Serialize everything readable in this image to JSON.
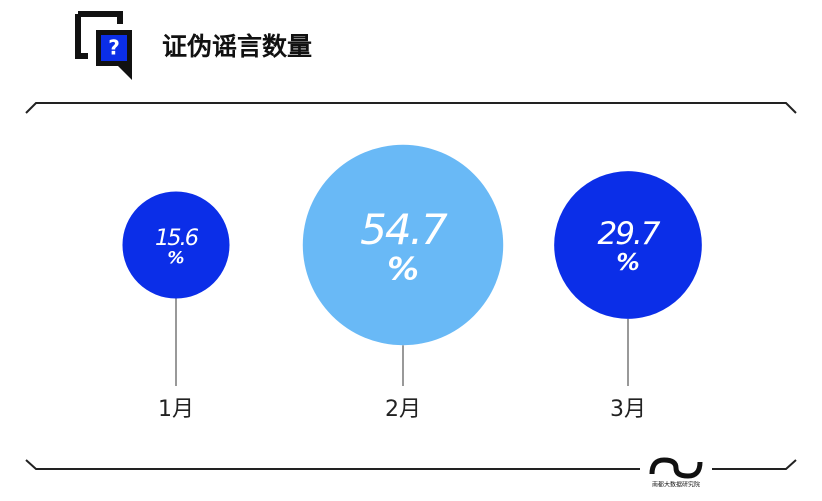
{
  "chart_data": {
    "type": "bubble",
    "title": "证伪谣言数量",
    "icon_text": "?",
    "categories": [
      "1月",
      "2月",
      "3月"
    ],
    "values": [
      15.6,
      54.7,
      29.7
    ],
    "value_labels": [
      [
        "15.6",
        "%"
      ],
      [
        "54.7",
        "%"
      ],
      [
        "29.7",
        "%"
      ]
    ],
    "colors": [
      "#0b2ee8",
      "#69b9f6",
      "#0b2ee8"
    ],
    "brand": "南都大数据研究院"
  }
}
